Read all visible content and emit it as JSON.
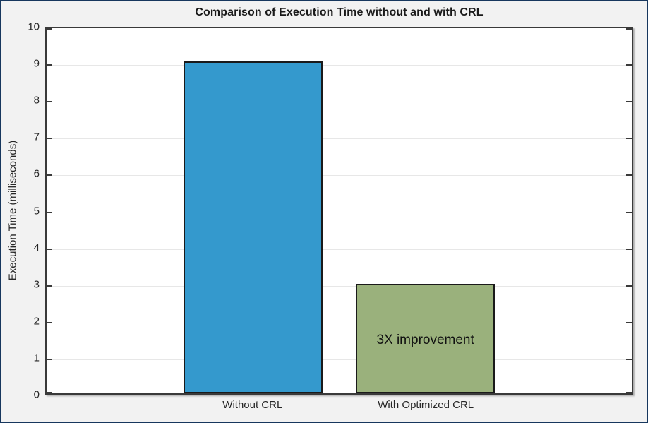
{
  "chart_data": {
    "type": "bar",
    "title": "Comparison of Execution Time without and with CRL",
    "xlabel": "",
    "ylabel": "Execution Time (milliseconds)",
    "categories": [
      "Without CRL",
      "With Optimized CRL"
    ],
    "values": [
      9.1,
      3.0
    ],
    "bar_colors": [
      "#3499cd",
      "#9ab17c"
    ],
    "bar_edge_color": "#1a1a1a",
    "ylim": [
      0,
      10
    ],
    "ytick_step": 1,
    "yticks": [
      0,
      1,
      2,
      3,
      4,
      5,
      6,
      7,
      8,
      9,
      10
    ],
    "grid": true,
    "legend": null,
    "annotation": {
      "text": "3X improvement",
      "category_index": 1,
      "y_value": 1.45
    },
    "colors": {
      "figure_bg": "#f2f2f2",
      "plot_bg": "#ffffff",
      "grid": "#e7e7e7",
      "axis": "#3a3a3a",
      "text": "#262626",
      "outer_border": "#17375e"
    }
  }
}
